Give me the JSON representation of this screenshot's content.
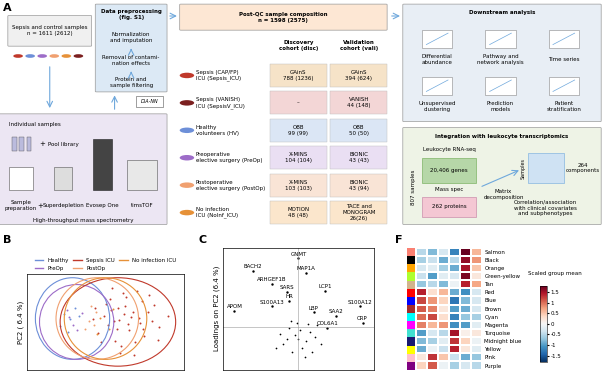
{
  "panel_A": {
    "label": "A",
    "samples": {
      "title": "Sepsis and control samples",
      "n": "n = 1611 (2612)"
    },
    "preprocessing": {
      "title": "Data preprocessing\n(fig. S1)",
      "steps": [
        "Normalization\nand imputation",
        "Removal of contami-\nnation effects",
        "Protein and\nsample filtering"
      ],
      "software": "DIA-NN"
    },
    "mass_spec": {
      "title": "High-throughput mass spectrometry",
      "plus": "+",
      "individual": "Individual samples",
      "pool": "Pool library",
      "steps": [
        "Sample\npreparation",
        "Superdepletion",
        "Evosep One",
        "timsTOF"
      ]
    },
    "composition": {
      "title": "Post-QC sample composition",
      "n": "n = 1598 (2575)",
      "columns": [
        "Discovery\ncohort (disc)",
        "Validation\ncohort (vali)"
      ],
      "rows": [
        {
          "label": "Sepsis (CAP/FP)\nICU (Sepsis_ICU)",
          "color": "#c0392b",
          "cells": [
            "GAinS\n788 (1236)",
            "GAinS\n394 (624)"
          ]
        },
        {
          "label": "Sepsis (VANISH)\nICU (SepsisV_ICU)",
          "color": "#7b1f1f",
          "cells": [
            "–",
            "VANISH\n44 (148)"
          ]
        },
        {
          "label": "Healthy\nvolunteers (HV)",
          "color": "#6d8fd8",
          "cells": [
            "OBB\n99 (99)",
            "OBB\n50 (50)"
          ]
        },
        {
          "label": "Preoperative\nelective surgery (PreOp)",
          "color": "#9d6cc8",
          "cells": [
            "X-MINS\n104 (104)",
            "BIONIC\n43 (43)"
          ]
        },
        {
          "label": "Postoperative\nelective surgery (PostOp)",
          "color": "#f0a070",
          "cells": [
            "X-MINS\n103 (103)",
            "BIONIC\n43 (94)"
          ]
        },
        {
          "label": "No infection\nICU (NoInf_ICU)",
          "color": "#e69138",
          "cells": [
            "MOTION\n48 (48)",
            "TACE and\nMONOGRAM\n26(26)"
          ]
        }
      ]
    },
    "downstream": {
      "title": "Downstream analysis",
      "items": [
        "Differential\nabundance",
        "Pathway and\nnetwork analysis",
        "Time series",
        "Unsupervised\nclustering",
        "Prediction\nmodels",
        "Patient\nstratification"
      ]
    },
    "integration": {
      "title": "Integration with leukocyte transcriptomics",
      "rna": "Leukocyte RNA-seq",
      "genes": "20,406 genes",
      "ms": "Mass spec",
      "proteins": "262 proteins",
      "samples_n": "807 samples",
      "decomposition": "Matrix\ndecomposition",
      "samples": "Samples",
      "components": "264\ncomponents",
      "correlation": "Correlation/association\nwith clinical covariates\nand subphenotypes"
    }
  },
  "chart_data": [
    {
      "panel": "B",
      "type": "scatter",
      "y_label": "PC2 ( 6.4 %)",
      "xlim": [
        -9,
        10
      ],
      "ylim": [
        -7,
        7
      ],
      "xticks": [],
      "yticks": [],
      "tick_labels": false,
      "legend": "top",
      "series": [
        {
          "name": "Healthy",
          "color": "#6d8fd8",
          "ellipse": {
            "center": [
              -3.5,
              0.5
            ],
            "width": 9,
            "height": 12
          },
          "values": [
            [
              -4.5,
              1.2
            ],
            [
              -3.8,
              0.4
            ],
            [
              -5.0,
              -0.6
            ],
            [
              -3.2,
              2.0
            ],
            [
              -4.1,
              -1.5
            ],
            [
              -2.7,
              0.9
            ]
          ]
        },
        {
          "name": "PreOp",
          "color": "#9d6cc8",
          "ellipse": {
            "center": [
              -3,
              0
            ],
            "width": 9,
            "height": 11
          },
          "values": [
            [
              -3.5,
              -0.4
            ],
            [
              -4.2,
              1.8
            ],
            [
              -2.9,
              -1.2
            ],
            [
              -3.9,
              0.7
            ],
            [
              -2.4,
              1.3
            ]
          ]
        },
        {
          "name": "Sepsis ICU",
          "color": "#c0392b",
          "ellipse": {
            "center": [
              2,
              0
            ],
            "width": 14,
            "height": 13
          },
          "values": [
            [
              2.1,
              0.3
            ],
            [
              3.4,
              -1.2
            ],
            [
              1.2,
              1.8
            ],
            [
              4.5,
              0.6
            ],
            [
              0.8,
              -0.5
            ],
            [
              2.9,
              2.4
            ],
            [
              5.2,
              -2.1
            ],
            [
              1.7,
              -2.8
            ],
            [
              3.8,
              1.5
            ],
            [
              6.1,
              0.2
            ],
            [
              0.3,
              0.9
            ],
            [
              2.4,
              -3.6
            ],
            [
              4.9,
              3.1
            ],
            [
              1.1,
              3.3
            ],
            [
              3.2,
              -0.3
            ],
            [
              5.6,
              1.4
            ],
            [
              -0.4,
              -1.6
            ],
            [
              2.6,
              4.2
            ],
            [
              7.0,
              -0.8
            ],
            [
              1.9,
              -1.1
            ],
            [
              4.1,
              -3.0
            ],
            [
              0.5,
              2.6
            ],
            [
              3.6,
              0.8
            ],
            [
              6.4,
              2.5
            ],
            [
              2.2,
              -4.5
            ],
            [
              -1.0,
              0.4
            ],
            [
              4.3,
              4.6
            ],
            [
              1.5,
              0.1
            ],
            [
              5.0,
              -1.0
            ],
            [
              3.0,
              3.6
            ],
            [
              0.0,
              -2.9
            ],
            [
              6.8,
              -2.6
            ],
            [
              2.7,
              1.1
            ],
            [
              3.9,
              -4.8
            ],
            [
              1.3,
              5.0
            ],
            [
              8.1,
              0.9
            ],
            [
              -0.8,
              2.1
            ],
            [
              4.7,
              -0.2
            ],
            [
              2.0,
              2.0
            ],
            [
              5.8,
              3.9
            ]
          ]
        },
        {
          "name": "PostOp",
          "color": "#f0a070",
          "ellipse": {
            "center": [
              -0.5,
              0.5
            ],
            "width": 10,
            "height": 12
          },
          "values": [
            [
              -1.5,
              0.2
            ],
            [
              -0.6,
              1.5
            ],
            [
              -2.0,
              -1.0
            ],
            [
              -0.9,
              -0.4
            ],
            [
              -1.2,
              2.3
            ]
          ]
        },
        {
          "name": "No infection ICU",
          "color": "#e69138",
          "ellipse": {
            "center": [
              0.5,
              0.5
            ],
            "width": 10,
            "height": 12
          },
          "values": [
            [
              -0.2,
              0.6
            ],
            [
              0.9,
              -1.0
            ],
            [
              -0.5,
              -1.8
            ],
            [
              1.4,
              1.9
            ]
          ]
        }
      ]
    },
    {
      "panel": "C",
      "type": "scatter",
      "y_label": "Loadings on PC2 (6.4 %)",
      "xlim": [
        -1,
        1
      ],
      "ylim": [
        -0.6,
        1.1
      ],
      "xticks": [],
      "yticks": [],
      "tick_labels": false,
      "reference_lines": {
        "x": 0,
        "y": 0
      },
      "color": "#000000",
      "points": [
        {
          "label": "GNMT",
          "x": 0.0,
          "y": 0.95
        },
        {
          "label": "BACH2",
          "x": -0.6,
          "y": 0.78
        },
        {
          "label": "MAP1A",
          "x": 0.1,
          "y": 0.75
        },
        {
          "label": "ARHGEF1B",
          "x": -0.35,
          "y": 0.6
        },
        {
          "label": "SARS",
          "x": -0.15,
          "y": 0.48
        },
        {
          "label": "LCP1",
          "x": 0.35,
          "y": 0.5
        },
        {
          "label": "HR",
          "x": -0.12,
          "y": 0.36
        },
        {
          "label": "S100A13",
          "x": -0.35,
          "y": 0.28
        },
        {
          "label": "APOM",
          "x": -0.85,
          "y": 0.22
        },
        {
          "label": "LBP",
          "x": 0.2,
          "y": 0.2
        },
        {
          "label": "SAA2",
          "x": 0.5,
          "y": 0.15
        },
        {
          "label": "S100A12",
          "x": 0.82,
          "y": 0.28
        },
        {
          "label": "CRP",
          "x": 0.85,
          "y": 0.05
        },
        {
          "label": "COL6A1",
          "x": 0.38,
          "y": -0.02
        }
      ],
      "unlabeled": [
        [
          0.02,
          -0.05
        ],
        [
          -0.05,
          -0.12
        ],
        [
          0.1,
          -0.2
        ],
        [
          -0.12,
          -0.02
        ],
        [
          0.15,
          -0.08
        ],
        [
          -0.2,
          -0.25
        ],
        [
          0.05,
          -0.3
        ],
        [
          -0.08,
          -0.35
        ],
        [
          0.22,
          -0.15
        ],
        [
          -0.25,
          -0.1
        ],
        [
          0.0,
          -0.18
        ],
        [
          0.12,
          0.04
        ],
        [
          -0.15,
          -0.18
        ],
        [
          0.3,
          -0.25
        ],
        [
          -0.3,
          -0.3
        ],
        [
          0.08,
          -0.42
        ],
        [
          -0.02,
          0.05
        ],
        [
          0.18,
          -0.35
        ],
        [
          -0.1,
          0.08
        ],
        [
          0.25,
          0.02
        ]
      ]
    },
    {
      "panel": "F",
      "type": "heatmap",
      "tick_labels": "y",
      "rows": [
        "Salmon",
        "Black",
        "Orange",
        "Green-yellow",
        "Tan",
        "Red",
        "Blue",
        "Brown",
        "Cyan",
        "Magenta",
        "Turquoise",
        "Midnight blue",
        "Yellow",
        "Pink",
        "Purple"
      ],
      "colors": [
        "salmon",
        "black",
        "orange",
        "greenyellow",
        "tan",
        "red",
        "blue",
        "brown",
        "cyan",
        "magenta",
        "turquoise",
        "midnightblue",
        "yellow",
        "pink",
        "purple"
      ],
      "values": [
        [
          -0.5,
          -0.8,
          -0.3,
          -1.2,
          1.8,
          0.6
        ],
        [
          -0.6,
          -0.4,
          -0.9,
          -0.5,
          1.6,
          0.8
        ],
        [
          -0.3,
          -0.2,
          -0.6,
          -0.9,
          1.5,
          0.5
        ],
        [
          -0.4,
          -1.0,
          -0.2,
          -0.3,
          1.7,
          0.2
        ],
        [
          -0.7,
          -0.5,
          -0.8,
          -0.1,
          1.4,
          0.7
        ],
        [
          1.4,
          0.3,
          0.6,
          -0.9,
          -1.1,
          -0.3
        ],
        [
          1.2,
          0.8,
          0.4,
          -1.3,
          -0.8,
          -0.3
        ],
        [
          1.1,
          0.9,
          0.2,
          -1.0,
          -0.9,
          -0.3
        ],
        [
          1.0,
          1.2,
          0.3,
          -1.2,
          -0.7,
          -0.6
        ],
        [
          0.9,
          0.6,
          0.8,
          -1.1,
          -1.0,
          -0.2
        ],
        [
          -1.0,
          -0.3,
          -0.5,
          1.5,
          0.1,
          0.2
        ],
        [
          -0.8,
          -0.6,
          -0.2,
          1.3,
          0.4,
          -0.1
        ],
        [
          -0.9,
          -0.1,
          -0.4,
          1.4,
          0.2,
          -0.2
        ],
        [
          0.2,
          1.3,
          0.5,
          -0.4,
          -0.9,
          -0.7
        ],
        [
          0.4,
          1.1,
          -0.1,
          -0.6,
          -0.3,
          -0.5
        ]
      ],
      "colorbar": {
        "title": "Scaled group mean",
        "range": [
          -1.8,
          1.8
        ],
        "ticks": [
          -1.5,
          -1,
          -0.5,
          0,
          0.5,
          1,
          1.5
        ]
      }
    }
  ]
}
